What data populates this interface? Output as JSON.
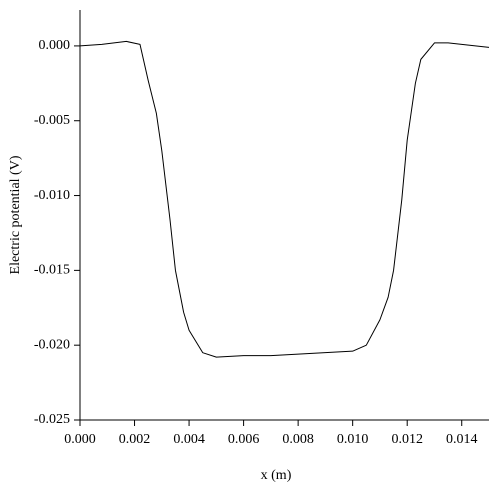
{
  "chart_data": {
    "type": "line",
    "xlabel": "x (m)",
    "ylabel": "Electric potential (V)",
    "x": [
      0,
      0.0008,
      0.0017,
      0.0022,
      0.0025,
      0.0028,
      0.003,
      0.0033,
      0.0035,
      0.0038,
      0.004,
      0.0045,
      0.005,
      0.006,
      0.007,
      0.008,
      0.009,
      0.01,
      0.0105,
      0.011,
      0.0113,
      0.0115,
      0.0118,
      0.012,
      0.0123,
      0.0125,
      0.013,
      0.0135,
      0.014,
      0.015
    ],
    "series": [
      {
        "color": "#000000",
        "values": [
          0,
          0.0001,
          0.0003,
          0.0001,
          -0.0023,
          -0.0045,
          -0.007,
          -0.0116,
          -0.015,
          -0.0178,
          -0.019,
          -0.0205,
          -0.0208,
          -0.0207,
          -0.0207,
          -0.0206,
          -0.0205,
          -0.0204,
          -0.02,
          -0.0183,
          -0.0168,
          -0.015,
          -0.0103,
          -0.0063,
          -0.0025,
          -0.0009,
          0.0002,
          0.0002,
          0.0001,
          -0.0001
        ]
      }
    ],
    "xlim": [
      0,
      0.015
    ],
    "ylim": [
      -0.025,
      0.0024
    ],
    "xticks": [
      {
        "value": 0,
        "label": "0.000"
      },
      {
        "value": 0.002,
        "label": "0.002"
      },
      {
        "value": 0.004,
        "label": "0.004"
      },
      {
        "value": 0.006,
        "label": "0.006"
      },
      {
        "value": 0.008,
        "label": "0.008"
      },
      {
        "value": 0.01,
        "label": "0.010"
      },
      {
        "value": 0.012,
        "label": "0.012"
      },
      {
        "value": 0.014,
        "label": "0.014"
      }
    ],
    "yticks": [
      {
        "value": 0,
        "label": "0.000"
      },
      {
        "value": -0.005,
        "label": "-0.005"
      },
      {
        "value": -0.01,
        "label": "-0.010"
      },
      {
        "value": -0.015,
        "label": "-0.015"
      },
      {
        "value": -0.02,
        "label": "-0.020"
      },
      {
        "value": -0.025,
        "label": "-0.025"
      }
    ],
    "grid": false
  }
}
